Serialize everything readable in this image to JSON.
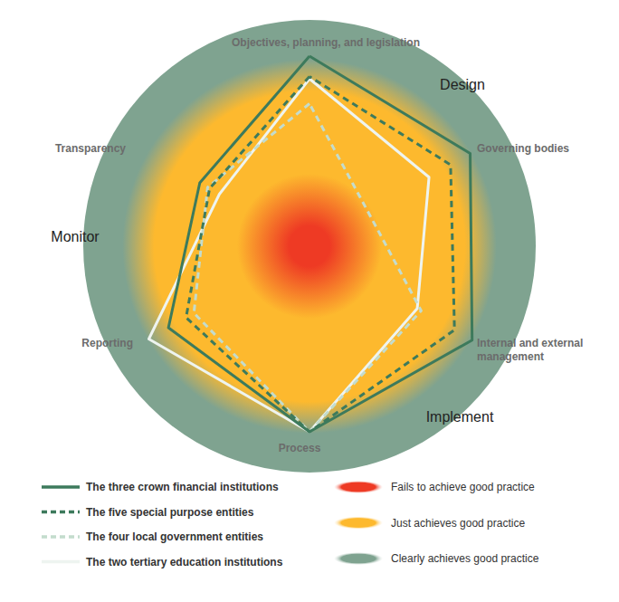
{
  "chart_data": {
    "type": "radar",
    "indicators": [
      "Objectives, planning, and legislation",
      "Governing bodies",
      "Internal and external management",
      "Process",
      "Reporting",
      "Transparency"
    ],
    "annotations": [
      "Design",
      "Implement",
      "Monitor"
    ],
    "ylim": [
      0,
      100
    ],
    "tick_labels": false,
    "legend": "bottom",
    "series": [
      {
        "name": "The three crown financial institutions",
        "color": "#3d7a5c",
        "line_style": "solid",
        "values": [
          84,
          82,
          83,
          82,
          72,
          56
        ]
      },
      {
        "name": "The five special purpose entities",
        "color": "#3d7a5c",
        "line_style": "dashed",
        "values": [
          75,
          72,
          74,
          82,
          63,
          51
        ]
      },
      {
        "name": "The four local government entities",
        "color": "#c3dccd",
        "line_style": "dashed",
        "values": [
          63,
          30,
          57,
          82,
          59,
          52
        ]
      },
      {
        "name": "The two tertiary education institutions",
        "color": "#eef4f0",
        "line_style": "solid",
        "values": [
          74,
          61,
          55,
          82,
          82,
          46
        ]
      }
    ],
    "zones": [
      {
        "name": "Fails to achieve good practice",
        "color": "#ee3a24",
        "from": 0,
        "to": 20
      },
      {
        "name": "Just achieves good practice",
        "color": "#fdb92e",
        "from": 20,
        "to": 78
      },
      {
        "name": "Clearly achieves good practice",
        "color": "#7fa390",
        "from": 78,
        "to": 100
      }
    ]
  }
}
